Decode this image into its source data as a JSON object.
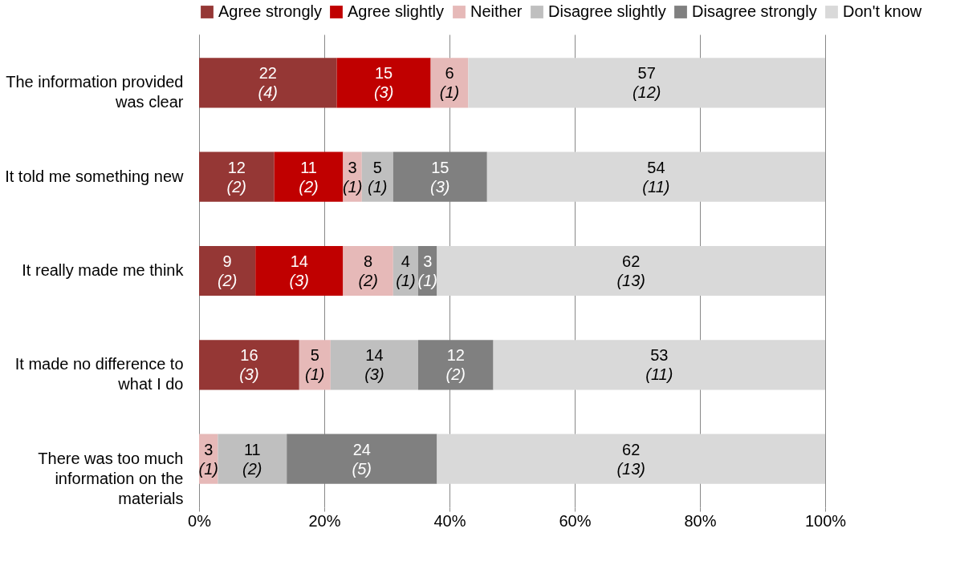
{
  "chart_data": {
    "type": "bar",
    "orientation": "horizontal",
    "stacked": true,
    "categories": [
      "The information provided was clear",
      "It told me something new",
      "It really made me think",
      "It made no difference to what I do",
      "There was too much information on the materials"
    ],
    "series": [
      {
        "name": "Agree strongly",
        "color": "#953735",
        "values": [
          22,
          12,
          9,
          16,
          null
        ],
        "value_labels": [
          "22 (4)",
          "12 (2)",
          "9 (2)",
          "16 (3)",
          null
        ]
      },
      {
        "name": "Agree slightly",
        "color": "#c00000",
        "values": [
          15,
          11,
          14,
          null,
          null
        ],
        "value_labels": [
          "15 (3)",
          "11 (2)",
          "14 (3)",
          null,
          null
        ]
      },
      {
        "name": "Neither",
        "color": "#e6b9b8",
        "values": [
          6,
          3,
          8,
          5,
          3
        ],
        "value_labels": [
          "6 (1)",
          "3 (1)",
          "8 (2)",
          "5 (1)",
          "3 (1)"
        ]
      },
      {
        "name": "Disagree slightly",
        "color": "#bfbfbf",
        "values": [
          null,
          5,
          4,
          14,
          11
        ],
        "value_labels": [
          null,
          "5 (1)",
          "4 (1)",
          "14 (3)",
          "11 (2)"
        ]
      },
      {
        "name": "Disagree strongly",
        "color": "#808080",
        "values": [
          null,
          15,
          3,
          12,
          24
        ],
        "value_labels": [
          null,
          "15 (3)",
          "3 (1)",
          "12 (2)",
          "24 (5)"
        ]
      },
      {
        "name": "Don't know",
        "color": "#d9d9d9",
        "values": [
          57,
          54,
          62,
          53,
          62
        ],
        "value_labels": [
          "57 (12)",
          "54 (11)",
          "62 (13)",
          "53 (11)",
          "62 (13)"
        ]
      }
    ],
    "xlim": [
      0,
      100
    ],
    "xticks": [
      {
        "value": 0,
        "label": "0%"
      },
      {
        "value": 20,
        "label": "20%"
      },
      {
        "value": 40,
        "label": "40%"
      },
      {
        "value": 60,
        "label": "60%"
      },
      {
        "value": 80,
        "label": "80%"
      },
      {
        "value": 100,
        "label": "100%"
      }
    ],
    "grid": "x",
    "legend": "top"
  }
}
